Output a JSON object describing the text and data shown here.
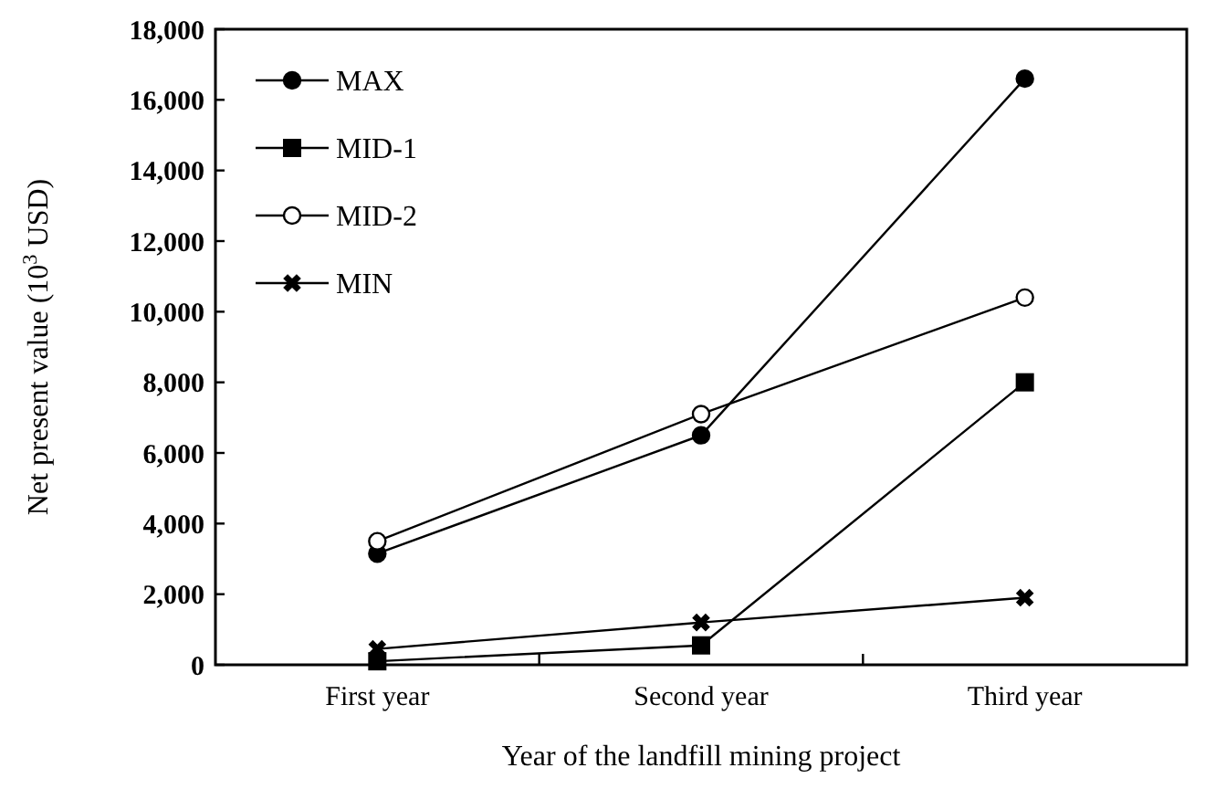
{
  "chart_data": {
    "type": "line",
    "xlabel": "Year of the landfill mining project",
    "ylabel": "Net present value (10$^{3}$ USD)",
    "categories": [
      "First year",
      "Second year",
      "Third year"
    ],
    "series": [
      {
        "name": "MAX",
        "color": "#000000",
        "marker": "circle",
        "values": [
          3150,
          6500,
          16600
        ]
      },
      {
        "name": "MID-1",
        "color": "#000000",
        "marker": "square",
        "values": [
          100,
          550,
          8000
        ]
      },
      {
        "name": "MID-2",
        "color": "#000000",
        "marker": "circle",
        "colors": [
          "#ffffff",
          "#ffffff",
          "#ffffff"
        ],
        "values": [
          3500,
          7100,
          10400
        ]
      },
      {
        "name": "MIN",
        "color": "#000000",
        "marker": "cross",
        "values": [
          450,
          1200,
          1900
        ]
      }
    ],
    "ylim": [
      0,
      18000
    ],
    "yticks": [
      {
        "value": 0,
        "label": "0"
      },
      {
        "value": 2000,
        "label": "2,000"
      },
      {
        "value": 4000,
        "label": "4,000"
      },
      {
        "value": 6000,
        "label": "6,000"
      },
      {
        "value": 8000,
        "label": "8,000"
      },
      {
        "value": 10000,
        "label": "10,000"
      },
      {
        "value": 12000,
        "label": "12,000"
      },
      {
        "value": 14000,
        "label": "14,000"
      },
      {
        "value": 16000,
        "label": "16,000"
      },
      {
        "value": 18000,
        "label": "18,000"
      }
    ],
    "grid": false,
    "legend": "top left",
    "line_style": "solid"
  }
}
